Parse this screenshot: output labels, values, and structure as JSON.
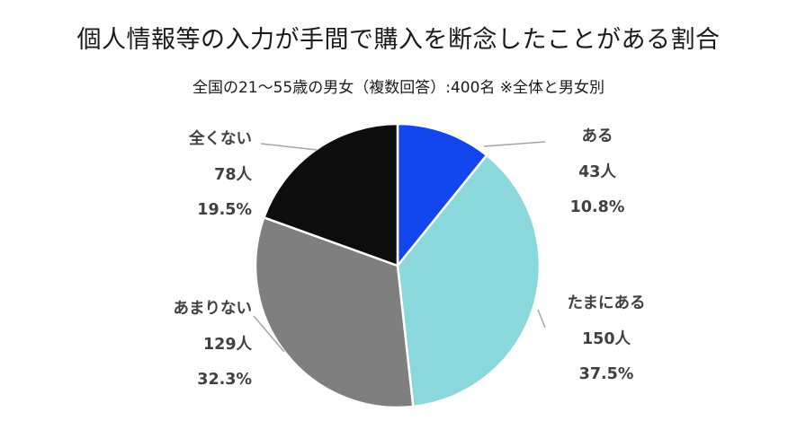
{
  "chart_data": {
    "type": "pie",
    "title": "個人情報等の入力が手間で購入を断念したことがある割合",
    "subtitle": "全国の21～55歳の男女（複数回答）:400名 ※全体と男女別",
    "slices": [
      {
        "label": "ある",
        "count": "43人",
        "percent": "10.8%",
        "value": 10.8,
        "color": "#1446ee"
      },
      {
        "label": "たまにある",
        "count": "150人",
        "percent": "37.5%",
        "value": 37.5,
        "color": "#8ad8dc"
      },
      {
        "label": "あまりない",
        "count": "129人",
        "percent": "32.3%",
        "value": 32.3,
        "color": "#7f7f7f"
      },
      {
        "label": "全くない",
        "count": "78人",
        "percent": "19.5%",
        "value": 19.5,
        "color": "#0d0d0d"
      }
    ],
    "start_angle": "12 o'clock",
    "direction": "clockwise",
    "legend": "none"
  }
}
